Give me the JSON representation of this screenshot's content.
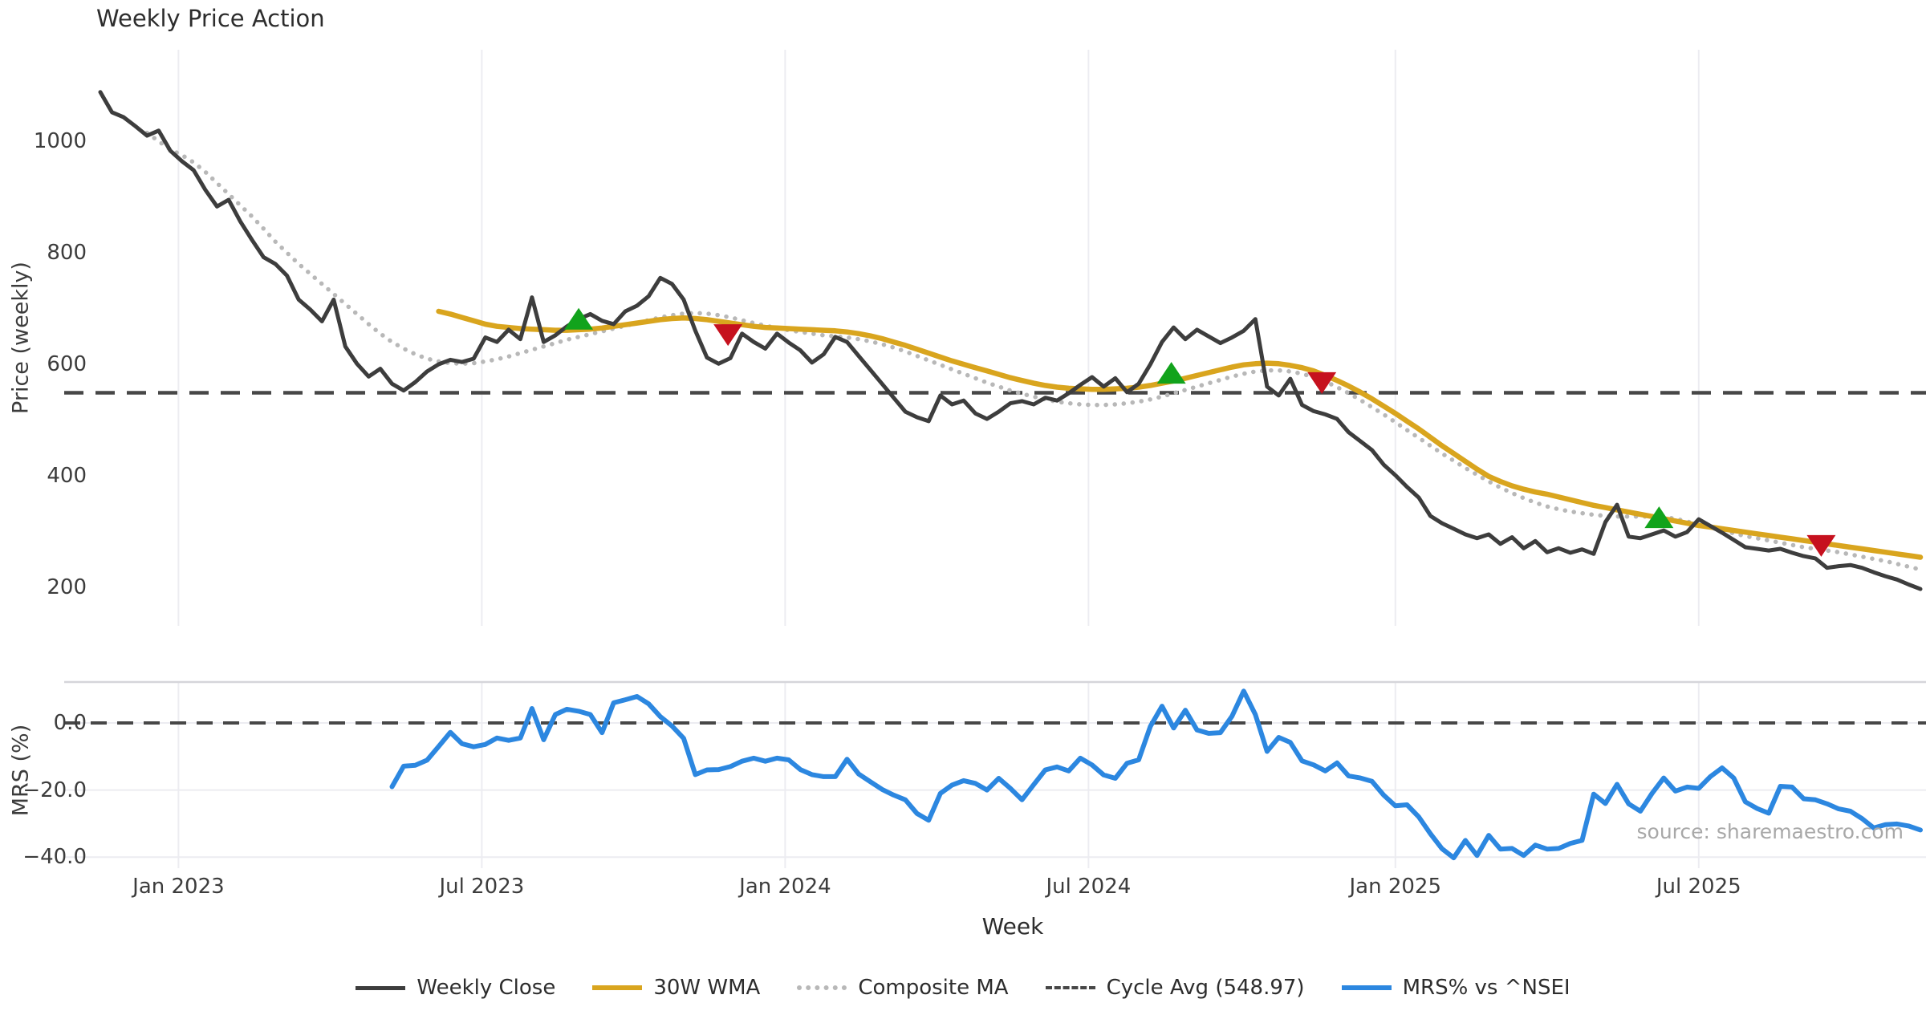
{
  "title": "Weekly Price Action",
  "xlabel": "Week",
  "ylabel_top": "Price (weekly)",
  "ylabel_bottom": "MRS (%)",
  "source_note": "source: sharemaestro.com",
  "colors": {
    "close": "#3d3d3d",
    "wma": "#d9a51e",
    "composite": "#b8b8b8",
    "cycle_avg": "#474747",
    "mrs": "#2c87e0",
    "buy_marker": "#12a31c",
    "sell_marker": "#c6111e",
    "grid": "#ececf1",
    "spine": "#d5d5da",
    "tick_text": "#3c3c3c",
    "source_text": "#a8a8a8"
  },
  "legend": [
    {
      "label": "Weekly Close",
      "style": "solid",
      "color_key": "close",
      "thickness": 5
    },
    {
      "label": "30W WMA",
      "style": "solid",
      "color_key": "wma",
      "thickness": 6
    },
    {
      "label": "Composite MA",
      "style": "dotted",
      "color_key": "composite",
      "thickness": 6
    },
    {
      "label": "Cycle Avg (548.97)",
      "style": "dashed",
      "color_key": "cycle_avg",
      "thickness": 4
    },
    {
      "label": "MRS% vs ^NSEI",
      "style": "solid",
      "color_key": "mrs",
      "thickness": 6
    }
  ],
  "chart_data": {
    "type": "line",
    "title": "Weekly Price Action",
    "xlabel": "Week",
    "x_unit": "weekly index, week 0 = mid-Nov 2022",
    "x_ticks": [
      {
        "week": 6.7,
        "label": "Jan 2023"
      },
      {
        "week": 32.7,
        "label": "Jul 2023"
      },
      {
        "week": 58.7,
        "label": "Jan 2024"
      },
      {
        "week": 84.7,
        "label": "Jul 2024"
      },
      {
        "week": 111.0,
        "label": "Jan 2025"
      },
      {
        "week": 137.0,
        "label": "Jul 2025"
      }
    ],
    "panels": [
      {
        "name": "price",
        "ylabel": "Price (weekly)",
        "ylim": [
          131,
          1164
        ],
        "grid": "vertical-only",
        "y_ticks": [
          {
            "value": 1000,
            "label": "1000"
          },
          {
            "value": 800,
            "label": "800"
          },
          {
            "value": 600,
            "label": "600"
          },
          {
            "value": 400,
            "label": "400"
          },
          {
            "value": 200,
            "label": "200"
          }
        ],
        "hline": {
          "value": 548.97,
          "label": "Cycle Avg (548.97)",
          "style": "dashed"
        },
        "series": [
          {
            "name": "Weekly Close",
            "start_week": 0,
            "values": [
              1088,
              1052,
              1043,
              1027,
              1010,
              1019,
              983,
              964,
              948,
              913,
              883,
              895,
              856,
              823,
              792,
              780,
              759,
              716,
              698,
              677,
              716,
              632,
              601,
              578,
              592,
              565,
              553,
              568,
              587,
              600,
              608,
              604,
              610,
              648,
              640,
              662,
              645,
              720,
              640,
              652,
              668,
              681,
              690,
              678,
              672,
              695,
              705,
              722,
              755,
              744,
              716,
              660,
              612,
              601,
              611,
              655,
              640,
              628,
              655,
              639,
              625,
              603,
              618,
              649,
              640,
              615,
              590,
              565,
              540,
              515,
              505,
              498,
              544,
              528,
              535,
              512,
              502,
              515,
              530,
              534,
              528,
              540,
              535,
              548,
              563,
              577,
              560,
              575,
              550,
              565,
              600,
              640,
              666,
              645,
              662,
              650,
              638,
              648,
              660,
              681,
              560,
              544,
              574,
              527,
              516,
              510,
              502,
              478,
              462,
              446,
              420,
              401,
              380,
              361,
              328,
              315,
              305,
              295,
              288,
              295,
              278,
              290,
              270,
              283,
              263,
              270,
              262,
              268,
              260,
              317,
              348,
              291,
              288,
              295,
              302,
              291,
              299,
              322,
              310,
              298,
              285,
              272,
              269,
              266,
              269,
              262,
              256,
              252,
              235,
              238,
              240,
              235,
              227,
              220,
              214,
              205,
              197
            ]
          },
          {
            "name": "30W WMA",
            "start_week": 29,
            "values": [
              695,
              690,
              684,
              678,
              672,
              668,
              666,
              664,
              663,
              662,
              661,
              661,
              662,
              663,
              665,
              668,
              671,
              674,
              677,
              680,
              682,
              683,
              682,
              680,
              677,
              674,
              671,
              668,
              666,
              665,
              664,
              663,
              662,
              661,
              660,
              658,
              655,
              651,
              646,
              640,
              634,
              627,
              620,
              613,
              606,
              600,
              594,
              588,
              582,
              576,
              571,
              566,
              562,
              559,
              557,
              556,
              555,
              555,
              556,
              557,
              559,
              562,
              566,
              570,
              575,
              580,
              585,
              590,
              595,
              599,
              601,
              602,
              601,
              598,
              594,
              588,
              580,
              571,
              561,
              550,
              538,
              525,
              512,
              498,
              484,
              469,
              454,
              440,
              426,
              412,
              399,
              390,
              382,
              376,
              371,
              367,
              362,
              357,
              352,
              347,
              343,
              339,
              335,
              331,
              327,
              323,
              319,
              315,
              311,
              308,
              305,
              302,
              299,
              296,
              293,
              290,
              287,
              284,
              281,
              278,
              275,
              272,
              269,
              266,
              263,
              260,
              257,
              254
            ]
          },
          {
            "name": "Composite MA",
            "start_week": 4,
            "values": [
              1015,
              1000,
              985,
              975,
              962,
              945,
              925,
              905,
              885,
              865,
              843,
              820,
              800,
              780,
              762,
              744,
              726,
              708,
              690,
              672,
              655,
              640,
              628,
              618,
              610,
              605,
              602,
              601,
              602,
              605,
              609,
              614,
              620,
              626,
              632,
              638,
              644,
              649,
              654,
              659,
              664,
              669,
              674,
              679,
              684,
              688,
              691,
              692,
              691,
              688,
              684,
              679,
              674,
              669,
              665,
              661,
              658,
              655,
              652,
              650,
              648,
              645,
              641,
              636,
              630,
              623,
              615,
              607,
              599,
              591,
              583,
              575,
              567,
              560,
              553,
              547,
              542,
              537,
              533,
              530,
              528,
              527,
              527,
              528,
              530,
              533,
              537,
              542,
              548,
              554,
              560,
              566,
              572,
              578,
              583,
              587,
              589,
              589,
              587,
              583,
              577,
              569,
              559,
              548,
              536,
              523,
              510,
              496,
              482,
              468,
              454,
              440,
              427,
              414,
              402,
              390,
              379,
              369,
              360,
              352,
              345,
              340,
              336,
              333,
              330,
              328,
              327,
              327,
              327,
              327,
              326,
              323,
              318,
              313,
              307,
              302,
              297,
              292,
              288,
              284,
              280,
              276,
              272,
              269,
              266,
              263,
              259,
              255,
              251,
              247,
              242,
              237,
              232
            ]
          }
        ],
        "markers": {
          "buy": [
            {
              "week": 41,
              "price": 681
            },
            {
              "week": 91.8,
              "price": 584
            },
            {
              "week": 133.6,
              "price": 325
            }
          ],
          "sell": [
            {
              "week": 53.8,
              "price": 653
            },
            {
              "week": 104.7,
              "price": 567
            },
            {
              "week": 147.5,
              "price": 275
            }
          ]
        }
      },
      {
        "name": "mrs",
        "ylabel": "MRS (%)",
        "ylim": [
          -43.3,
          12.2
        ],
        "grid": "both",
        "y_ticks": [
          {
            "value": 0,
            "label": "0.0"
          },
          {
            "value": -20,
            "label": "−20.0"
          },
          {
            "value": -40,
            "label": "−40.0"
          }
        ],
        "hline": {
          "value": 0,
          "style": "dashed"
        },
        "series": [
          {
            "name": "MRS% vs ^NSEI",
            "start_week": 25,
            "values": [
              -19,
              -12.9,
              -12.6,
              -11.1,
              -7,
              -2.8,
              -6.2,
              -7.1,
              -6.4,
              -4.5,
              -5.2,
              -4.5,
              4.3,
              -5,
              2.5,
              4.1,
              3.5,
              2.5,
              -2.9,
              6,
              6.9,
              7.9,
              5.7,
              1.9,
              -0.9,
              -4.6,
              -15.4,
              -14,
              -13.9,
              -13,
              -11.4,
              -10.5,
              -11.4,
              -10.5,
              -11,
              -13.9,
              -15.4,
              -16,
              -16,
              -10.8,
              -15.2,
              -17.5,
              -19.8,
              -21.5,
              -22.9,
              -27,
              -29,
              -21,
              -18.5,
              -17.2,
              -18,
              -20,
              -16.5,
              -19.5,
              -22.9,
              -18.4,
              -14,
              -13.1,
              -14.3,
              -10.5,
              -12.5,
              -15.5,
              -16.5,
              -12,
              -11,
              -1,
              5,
              -1.5,
              3.8,
              -2.1,
              -3.1,
              -2.9,
              2,
              9.5,
              2.5,
              -8.5,
              -4.3,
              -5.8,
              -11.3,
              -12.5,
              -14.3,
              -11.9,
              -15.8,
              -16.4,
              -17.4,
              -21.5,
              -24.7,
              -24.4,
              -28,
              -33,
              -37.5,
              -40.2,
              -35,
              -39.5,
              -33.5,
              -37.6,
              -37.4,
              -39.5,
              -36.4,
              -37.6,
              -37.4,
              -35.9,
              -35,
              -21.2,
              -24,
              -18.3,
              -24.1,
              -26.3,
              -21,
              -16.4,
              -20.3,
              -19.1,
              -19.5,
              -16,
              -13.4,
              -16.4,
              -23.5,
              -25.5,
              -26.9,
              -18.9,
              -19.1,
              -22.6,
              -22.9,
              -24.1,
              -25.6,
              -26.3,
              -28.5,
              -31.3,
              -30.3,
              -30.1,
              -30.7,
              -31.9
            ]
          }
        ]
      }
    ],
    "legend_position": "bottom-center",
    "annotations": [
      {
        "text": "source: sharemaestro.com",
        "position": "bottom-right"
      }
    ]
  }
}
